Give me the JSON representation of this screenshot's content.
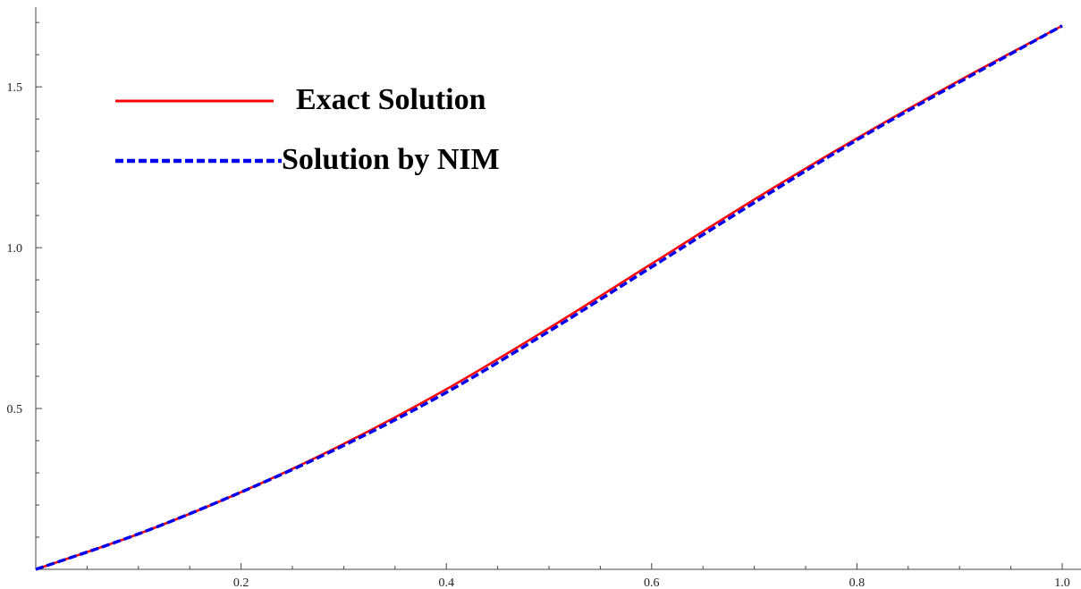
{
  "chart_data": {
    "type": "line",
    "title": "",
    "xlabel": "",
    "ylabel": "",
    "xlim": [
      0,
      1.0
    ],
    "ylim": [
      0,
      1.72
    ],
    "x_ticks": [
      0.2,
      0.4,
      0.6,
      0.8,
      1.0
    ],
    "x_tick_labels": [
      "0.2",
      "0.4",
      "0.6",
      "0.8",
      "1.0"
    ],
    "y_ticks": [
      0.5,
      1.0,
      1.5
    ],
    "y_tick_labels": [
      "0.5",
      "1.0",
      "1.5"
    ],
    "x_minor_step": 0.05,
    "y_minor_step": 0.1,
    "grid": false,
    "legend_position": "top-left",
    "series": [
      {
        "name": "Exact Solution",
        "color": "#ff0000",
        "style": "solid",
        "x": [
          0.0,
          0.1,
          0.2,
          0.3,
          0.4,
          0.5,
          0.6,
          0.7,
          0.8,
          0.9,
          1.0
        ],
        "y": [
          0.0,
          0.11,
          0.24,
          0.39,
          0.56,
          0.75,
          0.95,
          1.15,
          1.34,
          1.52,
          1.69
        ]
      },
      {
        "name": "Solution by NIM",
        "color": "#0000ee",
        "style": "dashed",
        "x": [
          0.0,
          0.1,
          0.2,
          0.3,
          0.4,
          0.5,
          0.6,
          0.7,
          0.8,
          0.9,
          1.0
        ],
        "y": [
          0.0,
          0.11,
          0.24,
          0.385,
          0.55,
          0.74,
          0.94,
          1.14,
          1.335,
          1.515,
          1.69
        ]
      }
    ]
  }
}
